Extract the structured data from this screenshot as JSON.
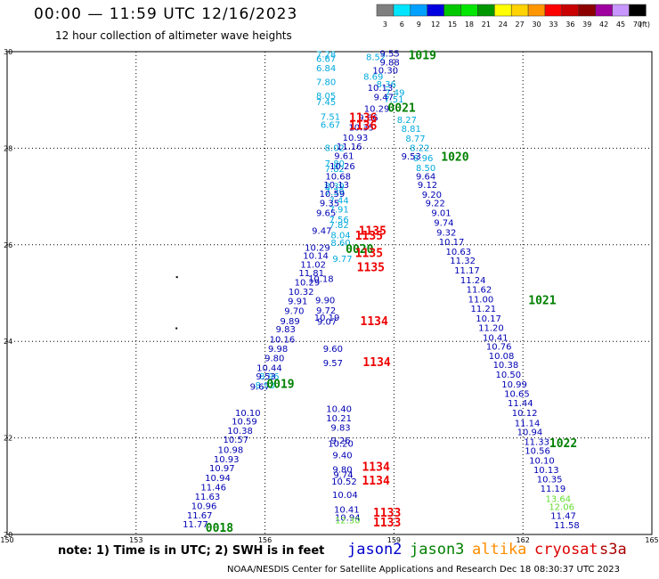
{
  "title": "00:00 — 11:59 UTC 12/16/2023",
  "subtitle": "12 hour collection of altimeter wave heights",
  "note": "note: 1) Time is in UTC; 2) SWH is in feet",
  "footer": "NOAA/NESDIS Center for Satellite Applications and Research     Dec 18 08:30:37 UTC 2023",
  "legend": {
    "unit": "(ft)",
    "bins": [
      {
        "label": "3",
        "color": "#7f7f7f"
      },
      {
        "label": "6",
        "color": "#00e5ff"
      },
      {
        "label": "9",
        "color": "#00a0ff"
      },
      {
        "label": "12",
        "color": "#0000e0"
      },
      {
        "label": "15",
        "color": "#00c800"
      },
      {
        "label": "18",
        "color": "#00e600"
      },
      {
        "label": "21",
        "color": "#009600"
      },
      {
        "label": "24",
        "color": "#ffff00"
      },
      {
        "label": "27",
        "color": "#ffd200"
      },
      {
        "label": "30",
        "color": "#ff9600"
      },
      {
        "label": "33",
        "color": "#ff0000"
      },
      {
        "label": "36",
        "color": "#c80000"
      },
      {
        "label": "39",
        "color": "#8c0000"
      },
      {
        "label": "42",
        "color": "#a000a0"
      },
      {
        "label": "45",
        "color": "#c896ff"
      },
      {
        "label": "70",
        "color": "#000000"
      }
    ]
  },
  "satellites": [
    {
      "name": "jason2",
      "color": "#0000cc"
    },
    {
      "name": "jason3",
      "color": "#008000"
    },
    {
      "name": "altika",
      "color": "#ff8c00"
    },
    {
      "name": "cryosat",
      "color": "#dd0000"
    },
    {
      "name": "s3a",
      "color": "#aa0000"
    }
  ],
  "colors": {
    "dark_blue": "#0000b4",
    "cyan": "#00aadd",
    "green": "#008000",
    "red": "#ee0000",
    "light_green": "#66dd33"
  },
  "chart_data": {
    "type": "scatter",
    "xlim": [
      150,
      165
    ],
    "ylim": [
      20,
      30
    ],
    "xticks": [
      150,
      153,
      156,
      159,
      162,
      165
    ],
    "yticks": [
      20,
      22,
      24,
      26,
      28,
      30
    ],
    "grid": true,
    "points": [
      {
        "lon": 157.42,
        "lat": 29.95,
        "v": "7.28",
        "c": "cyan"
      },
      {
        "lon": 157.42,
        "lat": 29.86,
        "v": "6.67",
        "c": "cyan"
      },
      {
        "lon": 157.42,
        "lat": 29.67,
        "v": "6.84",
        "c": "cyan"
      },
      {
        "lon": 157.42,
        "lat": 29.38,
        "v": "7.80",
        "c": "cyan"
      },
      {
        "lon": 157.42,
        "lat": 29.1,
        "v": "8.05",
        "c": "cyan"
      },
      {
        "lon": 157.42,
        "lat": 28.97,
        "v": "7.45",
        "c": "cyan"
      },
      {
        "lon": 157.52,
        "lat": 28.66,
        "v": "7.51",
        "c": "cyan"
      },
      {
        "lon": 157.52,
        "lat": 28.5,
        "v": "6.67",
        "c": "cyan"
      },
      {
        "lon": 157.62,
        "lat": 28.02,
        "v": "8.02",
        "c": "cyan"
      },
      {
        "lon": 157.62,
        "lat": 27.69,
        "v": "7.80",
        "c": "cyan"
      },
      {
        "lon": 157.62,
        "lat": 27.58,
        "v": "7.82",
        "c": "cyan"
      },
      {
        "lon": 157.62,
        "lat": 27.22,
        "v": "8.39",
        "c": "cyan"
      },
      {
        "lon": 157.62,
        "lat": 27.1,
        "v": "7.39",
        "c": "cyan"
      },
      {
        "lon": 157.72,
        "lat": 26.93,
        "v": "7.44",
        "c": "cyan"
      },
      {
        "lon": 157.72,
        "lat": 26.74,
        "v": "7.91",
        "c": "cyan"
      },
      {
        "lon": 157.72,
        "lat": 26.53,
        "v": "7.56",
        "c": "cyan"
      },
      {
        "lon": 157.72,
        "lat": 26.42,
        "v": "7.82",
        "c": "cyan"
      },
      {
        "lon": 157.76,
        "lat": 26.21,
        "v": "8.04",
        "c": "cyan"
      },
      {
        "lon": 157.76,
        "lat": 26.05,
        "v": "8.60",
        "c": "cyan"
      },
      {
        "lon": 157.8,
        "lat": 25.72,
        "v": "9.77",
        "c": "cyan"
      },
      {
        "lon": 158.58,
        "lat": 29.9,
        "v": "8.52",
        "c": "cyan"
      },
      {
        "lon": 158.52,
        "lat": 29.49,
        "v": "8.69",
        "c": "cyan"
      },
      {
        "lon": 158.82,
        "lat": 29.34,
        "v": "8.36",
        "c": "cyan"
      },
      {
        "lon": 159.02,
        "lat": 29.16,
        "v": "7.49",
        "c": "cyan"
      },
      {
        "lon": 159.0,
        "lat": 29.02,
        "v": "7.51",
        "c": "cyan"
      },
      {
        "lon": 159.3,
        "lat": 28.6,
        "v": "8.27",
        "c": "cyan"
      },
      {
        "lon": 159.4,
        "lat": 28.41,
        "v": "8.81",
        "c": "cyan"
      },
      {
        "lon": 159.5,
        "lat": 28.21,
        "v": "8.77",
        "c": "cyan"
      },
      {
        "lon": 159.6,
        "lat": 28.02,
        "v": "8.22",
        "c": "cyan"
      },
      {
        "lon": 159.74,
        "lat": 27.6,
        "v": "8.50",
        "c": "cyan"
      },
      {
        "lon": 159.68,
        "lat": 27.8,
        "v": "8.96",
        "c": "cyan"
      },
      {
        "lon": 156.1,
        "lat": 23.28,
        "v": "8.96",
        "c": "cyan"
      },
      {
        "lon": 156.0,
        "lat": 23.1,
        "v": "8.93",
        "c": "cyan"
      },
      {
        "lon": 158.9,
        "lat": 29.97,
        "v": "9.55",
        "c": "dark_blue"
      },
      {
        "lon": 158.9,
        "lat": 29.79,
        "v": "9.88",
        "c": "dark_blue"
      },
      {
        "lon": 158.8,
        "lat": 29.62,
        "v": "10.30",
        "c": "dark_blue"
      },
      {
        "lon": 158.68,
        "lat": 29.26,
        "v": "10.13",
        "c": "dark_blue"
      },
      {
        "lon": 158.76,
        "lat": 29.07,
        "v": "9.47",
        "c": "dark_blue"
      },
      {
        "lon": 158.6,
        "lat": 28.83,
        "v": "10.29",
        "c": "dark_blue"
      },
      {
        "lon": 158.4,
        "lat": 28.64,
        "v": "9.66",
        "c": "dark_blue"
      },
      {
        "lon": 158.24,
        "lat": 28.44,
        "v": "10.35",
        "c": "dark_blue"
      },
      {
        "lon": 158.1,
        "lat": 28.23,
        "v": "10.93",
        "c": "dark_blue"
      },
      {
        "lon": 157.96,
        "lat": 28.04,
        "v": "11.16",
        "c": "dark_blue"
      },
      {
        "lon": 157.84,
        "lat": 27.85,
        "v": "9.61",
        "c": "dark_blue"
      },
      {
        "lon": 157.8,
        "lat": 27.64,
        "v": "10.26",
        "c": "dark_blue"
      },
      {
        "lon": 157.7,
        "lat": 27.43,
        "v": "10.68",
        "c": "dark_blue"
      },
      {
        "lon": 157.66,
        "lat": 27.25,
        "v": "10.13",
        "c": "dark_blue"
      },
      {
        "lon": 157.56,
        "lat": 27.07,
        "v": "10.59",
        "c": "dark_blue"
      },
      {
        "lon": 157.5,
        "lat": 26.87,
        "v": "9.35",
        "c": "dark_blue"
      },
      {
        "lon": 157.42,
        "lat": 26.67,
        "v": "9.65",
        "c": "dark_blue"
      },
      {
        "lon": 157.32,
        "lat": 26.3,
        "v": "9.47",
        "c": "dark_blue"
      },
      {
        "lon": 157.22,
        "lat": 25.95,
        "v": "10.29",
        "c": "dark_blue"
      },
      {
        "lon": 157.18,
        "lat": 25.78,
        "v": "10.14",
        "c": "dark_blue"
      },
      {
        "lon": 157.12,
        "lat": 25.6,
        "v": "11.02",
        "c": "dark_blue"
      },
      {
        "lon": 157.08,
        "lat": 25.42,
        "v": "11.81",
        "c": "dark_blue"
      },
      {
        "lon": 156.98,
        "lat": 25.23,
        "v": "10.29",
        "c": "dark_blue"
      },
      {
        "lon": 157.3,
        "lat": 25.3,
        "v": "10.18",
        "c": "dark_blue"
      },
      {
        "lon": 156.84,
        "lat": 25.04,
        "v": "10.32",
        "c": "dark_blue"
      },
      {
        "lon": 156.76,
        "lat": 24.84,
        "v": "9.91",
        "c": "dark_blue"
      },
      {
        "lon": 157.4,
        "lat": 24.86,
        "v": "9.90",
        "c": "dark_blue"
      },
      {
        "lon": 156.68,
        "lat": 24.64,
        "v": "9.70",
        "c": "dark_blue"
      },
      {
        "lon": 157.42,
        "lat": 24.65,
        "v": "9.72",
        "c": "dark_blue"
      },
      {
        "lon": 157.44,
        "lat": 24.5,
        "v": "10.19",
        "c": "dark_blue"
      },
      {
        "lon": 157.44,
        "lat": 24.42,
        "v": "9.07",
        "c": "dark_blue"
      },
      {
        "lon": 156.58,
        "lat": 24.43,
        "v": "9.89",
        "c": "dark_blue"
      },
      {
        "lon": 156.48,
        "lat": 24.26,
        "v": "9.83",
        "c": "dark_blue"
      },
      {
        "lon": 156.4,
        "lat": 24.05,
        "v": "10.16",
        "c": "dark_blue"
      },
      {
        "lon": 156.3,
        "lat": 23.86,
        "v": "9.98",
        "c": "dark_blue"
      },
      {
        "lon": 156.22,
        "lat": 23.66,
        "v": "9.80",
        "c": "dark_blue"
      },
      {
        "lon": 157.58,
        "lat": 23.86,
        "v": "9.60",
        "c": "dark_blue"
      },
      {
        "lon": 157.58,
        "lat": 23.56,
        "v": "9.57",
        "c": "dark_blue"
      },
      {
        "lon": 156.1,
        "lat": 23.46,
        "v": "10.44",
        "c": "dark_blue"
      },
      {
        "lon": 156.02,
        "lat": 23.28,
        "v": "9.53",
        "c": "dark_blue"
      },
      {
        "lon": 155.88,
        "lat": 23.07,
        "v": "9.67",
        "c": "dark_blue"
      },
      {
        "lon": 155.6,
        "lat": 22.53,
        "v": "10.10",
        "c": "dark_blue"
      },
      {
        "lon": 155.52,
        "lat": 22.35,
        "v": "10.59",
        "c": "dark_blue"
      },
      {
        "lon": 155.42,
        "lat": 22.16,
        "v": "10.38",
        "c": "dark_blue"
      },
      {
        "lon": 155.32,
        "lat": 21.97,
        "v": "10.57",
        "c": "dark_blue"
      },
      {
        "lon": 155.2,
        "lat": 21.76,
        "v": "10.98",
        "c": "dark_blue"
      },
      {
        "lon": 155.1,
        "lat": 21.57,
        "v": "10.93",
        "c": "dark_blue"
      },
      {
        "lon": 155.0,
        "lat": 21.38,
        "v": "10.97",
        "c": "dark_blue"
      },
      {
        "lon": 154.9,
        "lat": 21.18,
        "v": "10.94",
        "c": "dark_blue"
      },
      {
        "lon": 154.8,
        "lat": 20.99,
        "v": "11.46",
        "c": "dark_blue"
      },
      {
        "lon": 154.66,
        "lat": 20.79,
        "v": "11.63",
        "c": "dark_blue"
      },
      {
        "lon": 154.58,
        "lat": 20.6,
        "v": "10.96",
        "c": "dark_blue"
      },
      {
        "lon": 154.48,
        "lat": 20.41,
        "v": "11.67",
        "c": "dark_blue"
      },
      {
        "lon": 154.38,
        "lat": 20.22,
        "v": "11.77",
        "c": "dark_blue"
      },
      {
        "lon": 157.72,
        "lat": 22.61,
        "v": "10.40",
        "c": "dark_blue"
      },
      {
        "lon": 157.72,
        "lat": 22.42,
        "v": "10.21",
        "c": "dark_blue"
      },
      {
        "lon": 157.76,
        "lat": 22.22,
        "v": "9.83",
        "c": "dark_blue"
      },
      {
        "lon": 157.76,
        "lat": 21.96,
        "v": "9.26",
        "c": "dark_blue"
      },
      {
        "lon": 157.76,
        "lat": 21.89,
        "v": "10.20",
        "c": "dark_blue"
      },
      {
        "lon": 157.8,
        "lat": 21.65,
        "v": "9.40",
        "c": "dark_blue"
      },
      {
        "lon": 157.8,
        "lat": 21.36,
        "v": "9.80",
        "c": "dark_blue"
      },
      {
        "lon": 157.82,
        "lat": 21.25,
        "v": "9.74",
        "c": "dark_blue"
      },
      {
        "lon": 157.84,
        "lat": 21.11,
        "v": "10.52",
        "c": "dark_blue"
      },
      {
        "lon": 157.86,
        "lat": 20.83,
        "v": "10.04",
        "c": "dark_blue"
      },
      {
        "lon": 157.9,
        "lat": 20.53,
        "v": "10.41",
        "c": "dark_blue"
      },
      {
        "lon": 157.92,
        "lat": 20.36,
        "v": "10.94",
        "c": "dark_blue"
      },
      {
        "lon": 159.4,
        "lat": 27.84,
        "v": "9.53",
        "c": "dark_blue"
      },
      {
        "lon": 159.74,
        "lat": 27.43,
        "v": "9.64",
        "c": "dark_blue"
      },
      {
        "lon": 159.78,
        "lat": 27.25,
        "v": "9.12",
        "c": "dark_blue"
      },
      {
        "lon": 159.88,
        "lat": 27.05,
        "v": "9.20",
        "c": "dark_blue"
      },
      {
        "lon": 159.96,
        "lat": 26.87,
        "v": "9.22",
        "c": "dark_blue"
      },
      {
        "lon": 160.1,
        "lat": 26.67,
        "v": "9.01",
        "c": "dark_blue"
      },
      {
        "lon": 160.16,
        "lat": 26.47,
        "v": "9.74",
        "c": "dark_blue"
      },
      {
        "lon": 160.22,
        "lat": 26.26,
        "v": "9.32",
        "c": "dark_blue"
      },
      {
        "lon": 160.34,
        "lat": 26.07,
        "v": "10.17",
        "c": "dark_blue"
      },
      {
        "lon": 160.5,
        "lat": 25.87,
        "v": "10.63",
        "c": "dark_blue"
      },
      {
        "lon": 160.6,
        "lat": 25.68,
        "v": "11.32",
        "c": "dark_blue"
      },
      {
        "lon": 160.7,
        "lat": 25.48,
        "v": "11.17",
        "c": "dark_blue"
      },
      {
        "lon": 160.84,
        "lat": 25.28,
        "v": "11.24",
        "c": "dark_blue"
      },
      {
        "lon": 160.98,
        "lat": 25.08,
        "v": "11.62",
        "c": "dark_blue"
      },
      {
        "lon": 161.02,
        "lat": 24.88,
        "v": "11.00",
        "c": "dark_blue"
      },
      {
        "lon": 161.08,
        "lat": 24.69,
        "v": "11.21",
        "c": "dark_blue"
      },
      {
        "lon": 161.2,
        "lat": 24.48,
        "v": "10.17",
        "c": "dark_blue"
      },
      {
        "lon": 161.26,
        "lat": 24.29,
        "v": "11.20",
        "c": "dark_blue"
      },
      {
        "lon": 161.36,
        "lat": 24.09,
        "v": "10.41",
        "c": "dark_blue"
      },
      {
        "lon": 161.44,
        "lat": 23.9,
        "v": "10.76",
        "c": "dark_blue"
      },
      {
        "lon": 161.5,
        "lat": 23.71,
        "v": "10.08",
        "c": "dark_blue"
      },
      {
        "lon": 161.6,
        "lat": 23.52,
        "v": "10.38",
        "c": "dark_blue"
      },
      {
        "lon": 161.66,
        "lat": 23.32,
        "v": "10.50",
        "c": "dark_blue"
      },
      {
        "lon": 161.8,
        "lat": 23.12,
        "v": "10.99",
        "c": "dark_blue"
      },
      {
        "lon": 161.86,
        "lat": 22.92,
        "v": "10.65",
        "c": "dark_blue"
      },
      {
        "lon": 161.94,
        "lat": 22.73,
        "v": "11.44",
        "c": "dark_blue"
      },
      {
        "lon": 162.04,
        "lat": 22.53,
        "v": "10.12",
        "c": "dark_blue"
      },
      {
        "lon": 162.1,
        "lat": 22.32,
        "v": "11.14",
        "c": "dark_blue"
      },
      {
        "lon": 162.16,
        "lat": 22.13,
        "v": "10.94",
        "c": "dark_blue"
      },
      {
        "lon": 162.32,
        "lat": 21.93,
        "v": "11.33",
        "c": "dark_blue"
      },
      {
        "lon": 162.34,
        "lat": 21.74,
        "v": "10.56",
        "c": "dark_blue"
      },
      {
        "lon": 162.44,
        "lat": 21.54,
        "v": "10.10",
        "c": "dark_blue"
      },
      {
        "lon": 162.54,
        "lat": 21.35,
        "v": "10.13",
        "c": "dark_blue"
      },
      {
        "lon": 162.62,
        "lat": 21.15,
        "v": "10.35",
        "c": "dark_blue"
      },
      {
        "lon": 162.7,
        "lat": 20.96,
        "v": "11.19",
        "c": "dark_blue"
      },
      {
        "lon": 162.94,
        "lat": 20.4,
        "v": "11.47",
        "c": "dark_blue"
      },
      {
        "lon": 163.02,
        "lat": 20.2,
        "v": "11.58",
        "c": "dark_blue"
      },
      {
        "lon": 162.82,
        "lat": 20.75,
        "v": "13.64",
        "c": "light_green"
      },
      {
        "lon": 162.9,
        "lat": 20.58,
        "v": "12.06",
        "c": "light_green"
      },
      {
        "lon": 157.92,
        "lat": 20.3,
        "v": "12.30",
        "c": "light_green"
      },
      {
        "lon": 159.66,
        "lat": 29.94,
        "v": "1019",
        "c": "green",
        "label": true
      },
      {
        "lon": 159.18,
        "lat": 28.85,
        "v": "0021",
        "c": "green",
        "label": true
      },
      {
        "lon": 160.42,
        "lat": 27.83,
        "v": "1020",
        "c": "green",
        "label": true
      },
      {
        "lon": 158.2,
        "lat": 25.92,
        "v": "0020",
        "c": "green",
        "label": true
      },
      {
        "lon": 156.36,
        "lat": 23.13,
        "v": "0019",
        "c": "green",
        "label": true
      },
      {
        "lon": 162.45,
        "lat": 24.86,
        "v": "1021",
        "c": "green",
        "label": true
      },
      {
        "lon": 162.94,
        "lat": 21.9,
        "v": "1022",
        "c": "green",
        "label": true
      },
      {
        "lon": 154.94,
        "lat": 20.15,
        "v": "0018",
        "c": "green",
        "label": true
      },
      {
        "lon": 158.28,
        "lat": 28.64,
        "v": "1136",
        "c": "red",
        "label": true
      },
      {
        "lon": 158.28,
        "lat": 28.48,
        "v": "1136",
        "c": "red",
        "label": true
      },
      {
        "lon": 158.5,
        "lat": 26.3,
        "v": "1135",
        "c": "red",
        "label": true
      },
      {
        "lon": 158.42,
        "lat": 26.2,
        "v": "1135",
        "c": "red",
        "label": true
      },
      {
        "lon": 158.42,
        "lat": 25.84,
        "v": "1135",
        "c": "red",
        "label": true
      },
      {
        "lon": 158.46,
        "lat": 25.54,
        "v": "1135",
        "c": "red",
        "label": true
      },
      {
        "lon": 158.54,
        "lat": 24.43,
        "v": "1134",
        "c": "red",
        "label": true
      },
      {
        "lon": 158.6,
        "lat": 23.58,
        "v": "1134",
        "c": "red",
        "label": true
      },
      {
        "lon": 158.58,
        "lat": 21.41,
        "v": "1134",
        "c": "red",
        "label": true
      },
      {
        "lon": 158.58,
        "lat": 21.13,
        "v": "1134",
        "c": "red",
        "label": true
      },
      {
        "lon": 158.84,
        "lat": 20.46,
        "v": "1133",
        "c": "red",
        "label": true
      },
      {
        "lon": 158.84,
        "lat": 20.26,
        "v": "1133",
        "c": "red",
        "label": true
      }
    ],
    "dots": [
      {
        "lon": 153.95,
        "lat": 25.33
      },
      {
        "lon": 153.94,
        "lat": 24.27
      }
    ]
  }
}
